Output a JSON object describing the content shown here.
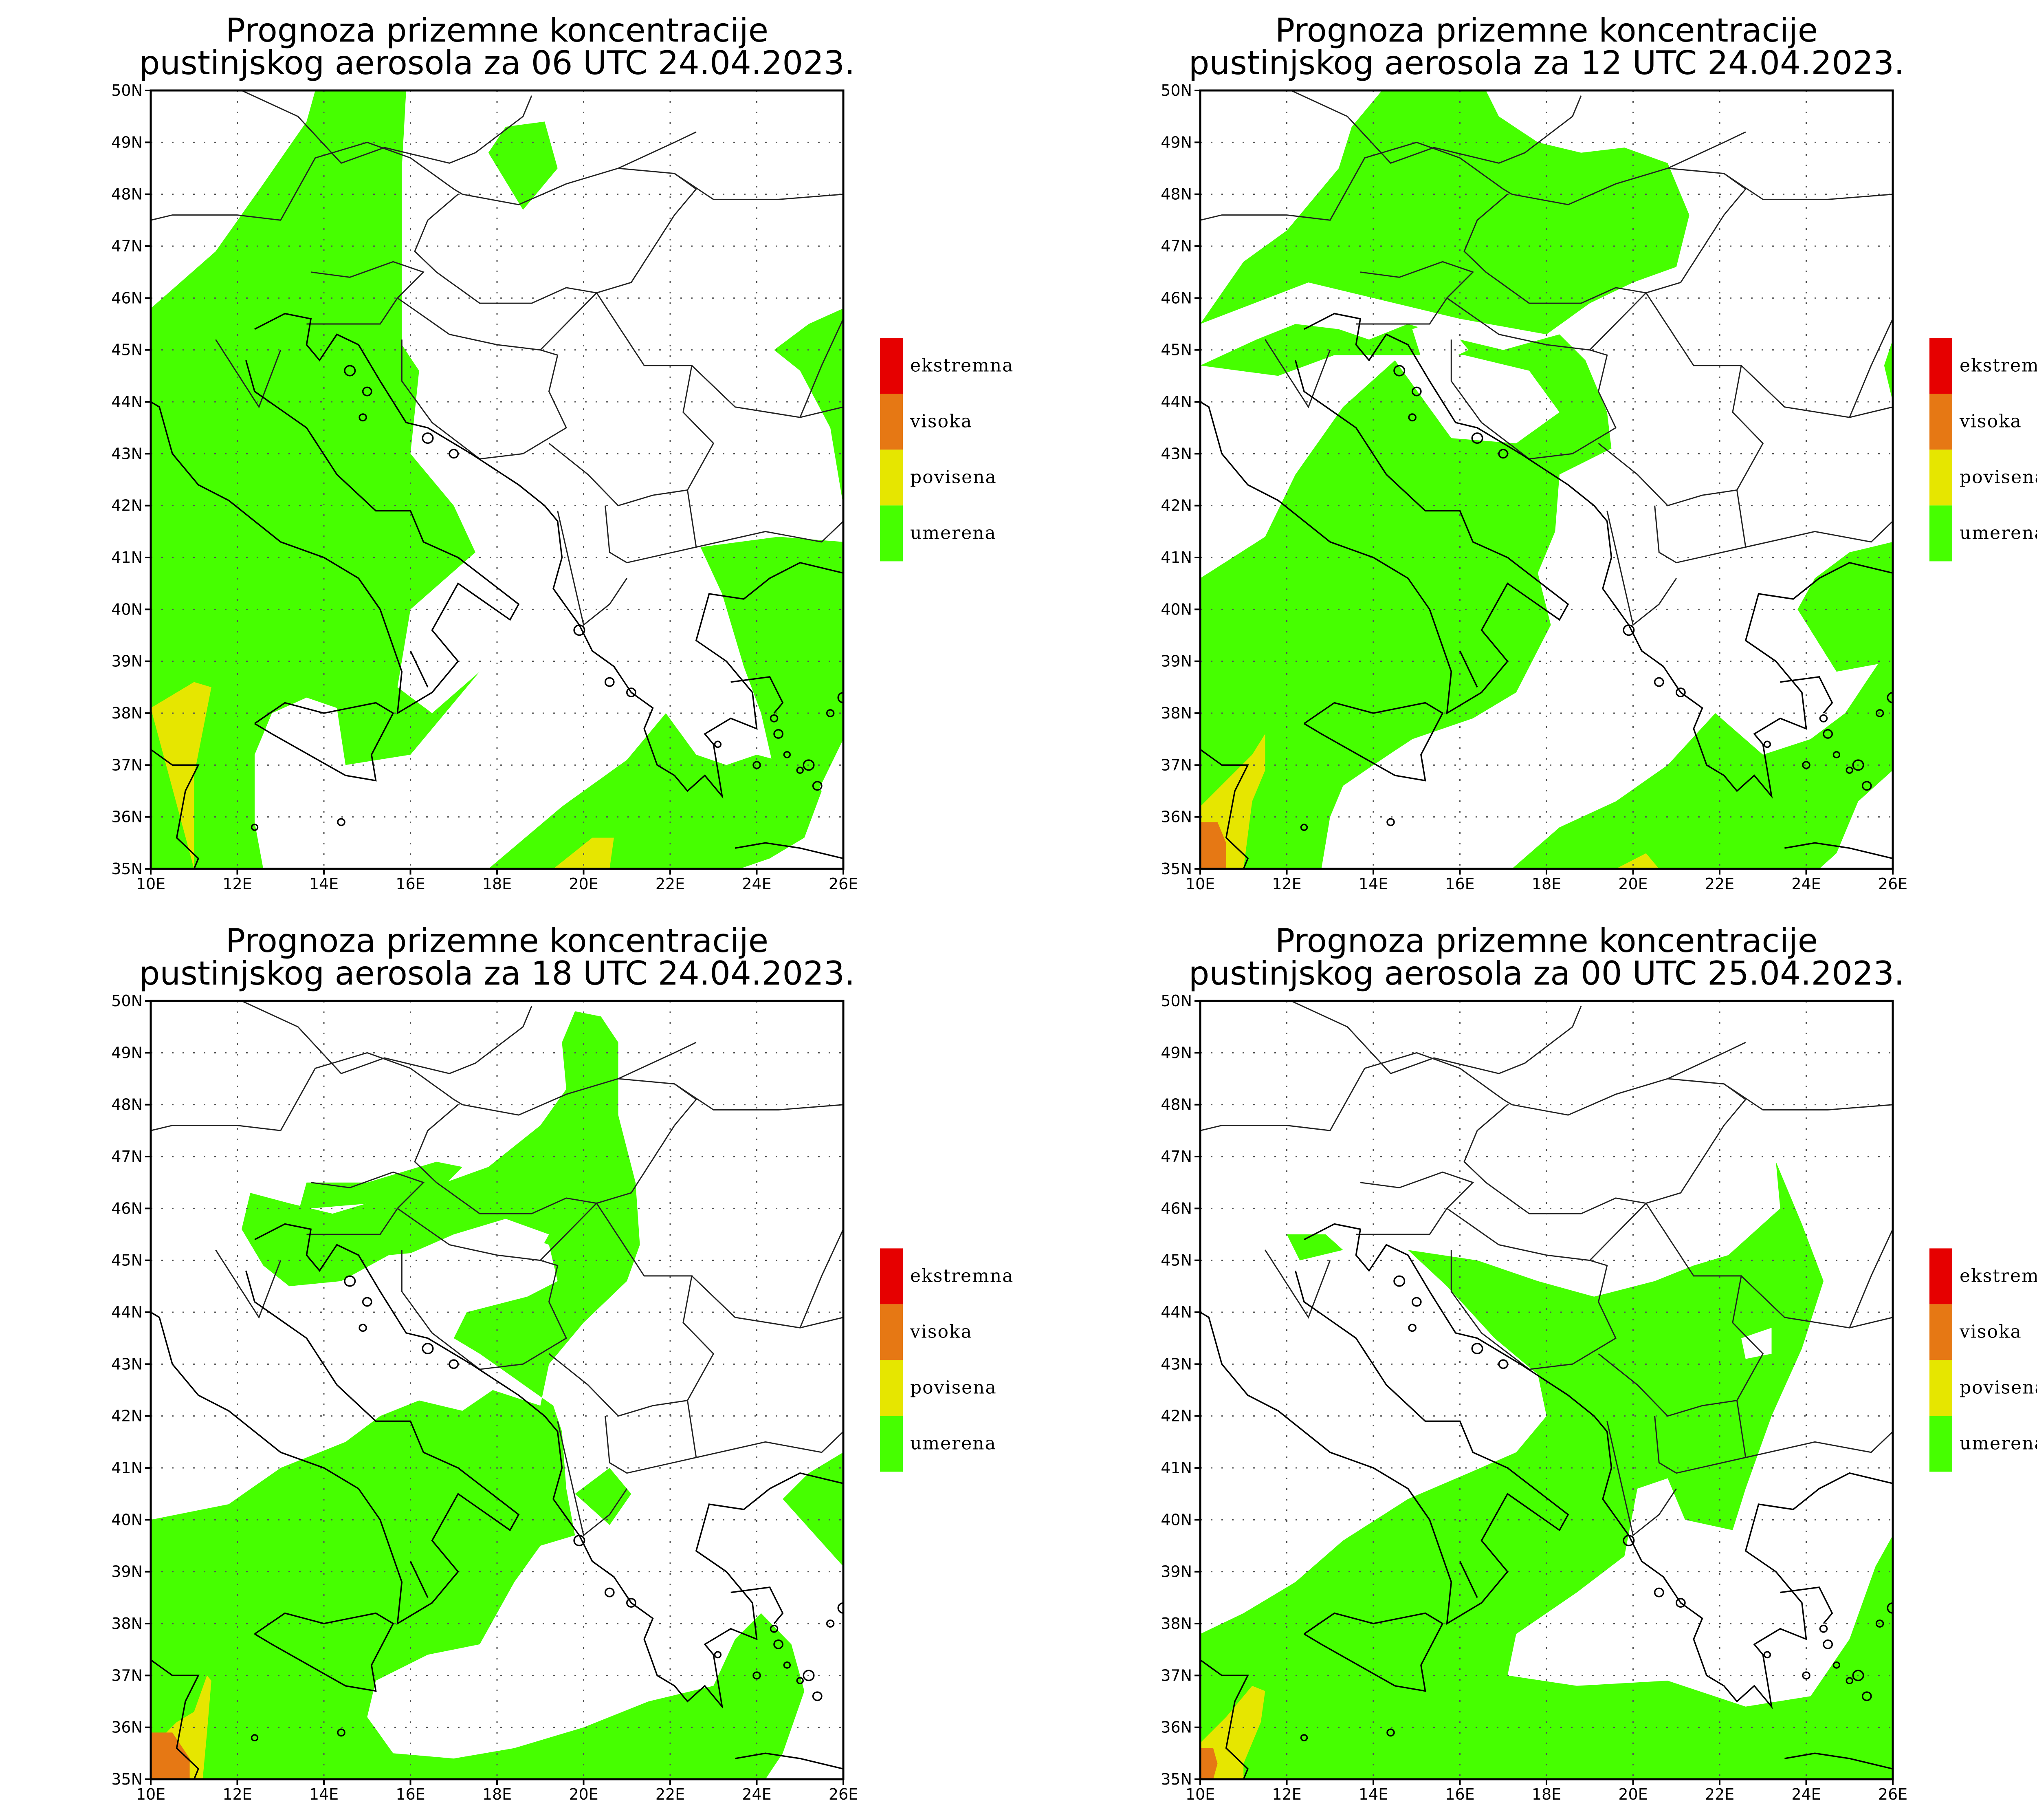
{
  "colors": {
    "umerena": "#46ff00",
    "povisena": "#e6e600",
    "visoka": "#e67814",
    "ekstremna": "#e60000"
  },
  "legend": [
    {
      "label": "ekstremna",
      "color": "#e60000"
    },
    {
      "label": "visoka",
      "color": "#e67814"
    },
    {
      "label": "povisena",
      "color": "#e6e600"
    },
    {
      "label": "umerena",
      "color": "#46ff00"
    }
  ],
  "x_ticks": [
    "10E",
    "12E",
    "14E",
    "16E",
    "18E",
    "20E",
    "22E",
    "24E",
    "26E"
  ],
  "y_ticks": [
    "50N",
    "49N",
    "48N",
    "47N",
    "46N",
    "45N",
    "44N",
    "43N",
    "42N",
    "41N",
    "40N",
    "39N",
    "38N",
    "37N",
    "36N",
    "35N"
  ],
  "panels": [
    {
      "title1": "Prognoza prizemne koncentracije",
      "title2": "pustinjskog aerosola za 06 UTC 24.04.2023."
    },
    {
      "title1": "Prognoza prizemne koncentracije",
      "title2": "pustinjskog aerosola za 12 UTC 24.04.2023."
    },
    {
      "title1": "Prognoza prizemne koncentracije",
      "title2": "pustinjskog aerosola za 18 UTC 24.04.2023."
    },
    {
      "title1": "Prognoza prizemne koncentracije",
      "title2": "pustinjskog aerosola za 00 UTC 25.04.2023."
    }
  ]
}
